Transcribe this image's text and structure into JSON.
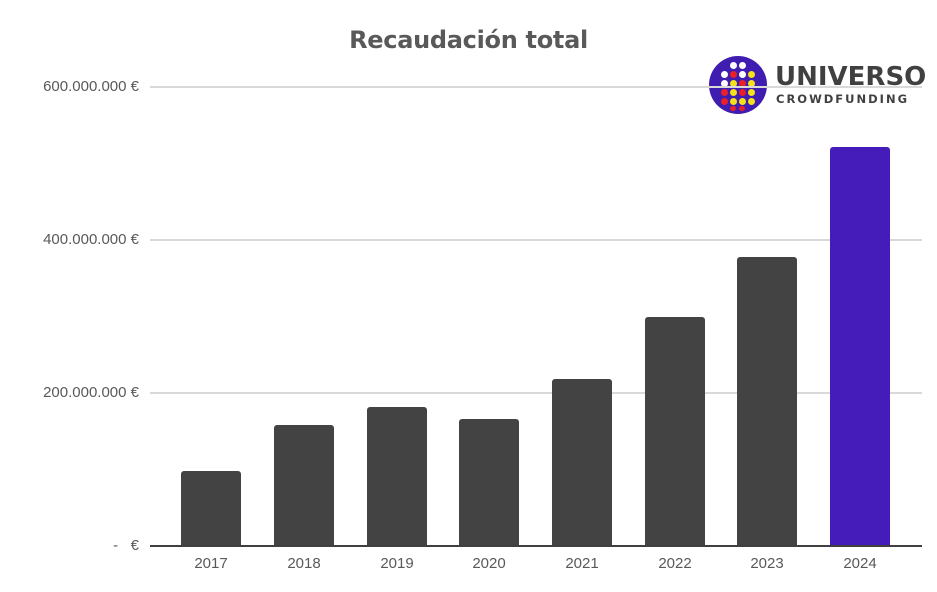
{
  "chart_data": {
    "type": "bar",
    "title": "Recaudación total",
    "xlabel": "",
    "ylabel": "",
    "categories": [
      "2017",
      "2018",
      "2019",
      "2020",
      "2021",
      "2022",
      "2023",
      "2024"
    ],
    "values": [
      98000000,
      158000000,
      182000000,
      166000000,
      218000000,
      299000000,
      378000000,
      521000000
    ],
    "ylim": [
      0,
      600000000
    ],
    "yticks": [
      0,
      200000000,
      400000000,
      600000000
    ],
    "ytick_labels": [
      "-   €",
      "200.000.000 €",
      "400.000.000 €",
      "600.000.000 €"
    ],
    "grid": true,
    "legend": null,
    "colors": {
      "default_bar": "#434343",
      "highlight_bar": "#451cba",
      "gridline": "#d9d9d9",
      "axis": "#404040",
      "text": "#595959"
    },
    "highlighted_category": "2024"
  },
  "title": "Recaudación total",
  "logo": {
    "name": "UNIVERSO",
    "subtitle": "CROWDFUNDING"
  },
  "yaxis": {
    "labels": [
      "-   €",
      "200.000.000 €",
      "400.000.000 €",
      "600.000.000 €"
    ]
  },
  "xaxis": {
    "labels": [
      "2017",
      "2018",
      "2019",
      "2020",
      "2021",
      "2022",
      "2023",
      "2024"
    ]
  }
}
